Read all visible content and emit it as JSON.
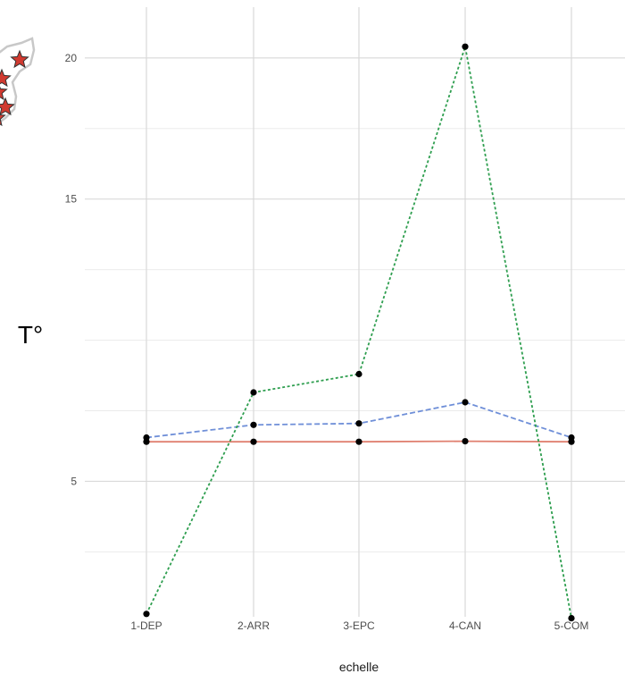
{
  "chart_data": {
    "type": "line",
    "title": "",
    "xlabel": "echelle",
    "ylabel": "T°",
    "categories": [
      "1-DEP",
      "2-ARR",
      "3-EPC",
      "4-CAN",
      "5-COM"
    ],
    "y_ticks": [
      5,
      15,
      20
    ],
    "ylim": [
      0.2,
      21.8
    ],
    "grid": true,
    "series": [
      {
        "style": "solid",
        "color": "#e08070",
        "values": [
          6.4,
          6.4,
          6.4,
          6.42,
          6.4
        ]
      },
      {
        "style": "dashed",
        "color": "#6f8fd8",
        "values": [
          6.55,
          7.0,
          7.05,
          7.8,
          6.55
        ]
      },
      {
        "style": "dotted",
        "color": "#2e9e4f",
        "values": [
          0.3,
          8.15,
          8.8,
          20.4,
          0.15
        ]
      }
    ]
  },
  "map_inset": {
    "marker_icon": "star-icon",
    "marker_color": "#d03a30"
  }
}
